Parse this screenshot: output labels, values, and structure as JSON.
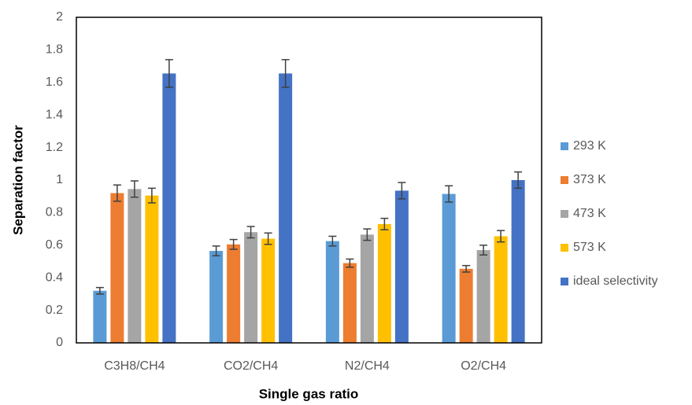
{
  "chart_data": {
    "type": "bar",
    "x_label": "Single gas ratio",
    "y_label": "Separation factor",
    "categories": [
      "C3H8/CH4",
      "CO2/CH4",
      "N2/CH4",
      "O2/CH4"
    ],
    "series": [
      {
        "name": "293 K",
        "color": "#5b9bd5",
        "values": [
          0.32,
          0.565,
          0.625,
          0.915
        ],
        "errors": [
          0.02,
          0.03,
          0.03,
          0.05
        ]
      },
      {
        "name": "373 K",
        "color": "#ed7d31",
        "values": [
          0.92,
          0.605,
          0.49,
          0.455
        ],
        "errors": [
          0.05,
          0.03,
          0.025,
          0.02
        ]
      },
      {
        "name": "473 K",
        "color": "#a5a5a5",
        "values": [
          0.945,
          0.68,
          0.665,
          0.57
        ],
        "errors": [
          0.05,
          0.035,
          0.035,
          0.03
        ]
      },
      {
        "name": "573 K",
        "color": "#ffc000",
        "values": [
          0.905,
          0.64,
          0.73,
          0.655
        ],
        "errors": [
          0.045,
          0.035,
          0.035,
          0.035
        ]
      },
      {
        "name": "ideal selectivity",
        "color": "#4472c4",
        "values": [
          1.655,
          1.655,
          0.935,
          1.0
        ],
        "errors": [
          0.085,
          0.085,
          0.05,
          0.05
        ]
      }
    ],
    "ylim": [
      0,
      2
    ],
    "yticks": [
      0,
      0.2,
      0.4,
      0.6,
      0.8,
      1,
      1.2,
      1.4,
      1.6,
      1.8,
      2
    ],
    "grid": false,
    "legend": "right"
  }
}
